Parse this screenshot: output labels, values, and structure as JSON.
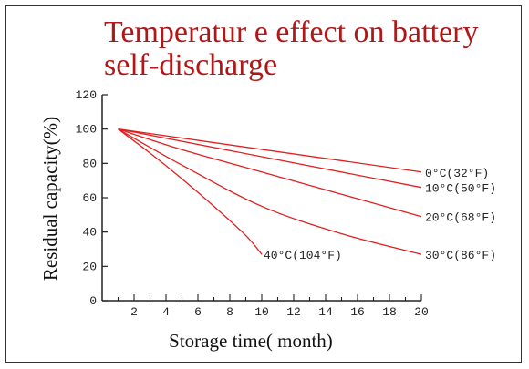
{
  "title": {
    "line1": "Temperatur e effect on battery",
    "line2": "self-discharge"
  },
  "colors": {
    "title": "#b01818",
    "series": "#e02020",
    "axis": "#222222"
  },
  "chart_data": {
    "type": "line",
    "xlabel": "Storage time( month)",
    "ylabel": "Residual capacity(%)",
    "xlim": [
      0,
      20
    ],
    "ylim": [
      0,
      120
    ],
    "xticks": [
      2,
      4,
      6,
      8,
      10,
      12,
      14,
      16,
      18,
      20
    ],
    "yticks": [
      0,
      20,
      40,
      60,
      80,
      100,
      120
    ],
    "grid": false,
    "legend": "none",
    "series": [
      {
        "name": "0°C(32°F)",
        "x": [
          1,
          20
        ],
        "y": [
          100,
          75
        ]
      },
      {
        "name": "10°C(50°F)",
        "x": [
          1,
          20
        ],
        "y": [
          100,
          66
        ]
      },
      {
        "name": "20°C(68°F)",
        "x": [
          1,
          5,
          10,
          15,
          20
        ],
        "y": [
          100,
          88,
          75,
          62,
          49
        ]
      },
      {
        "name": "30°C(86°F)",
        "x": [
          1,
          5,
          10,
          15,
          20
        ],
        "y": [
          100,
          79,
          55,
          39,
          27
        ]
      },
      {
        "name": "40°C(104°F)",
        "x": [
          1,
          3,
          5,
          7,
          9,
          10
        ],
        "y": [
          100,
          86,
          71,
          55,
          38,
          27
        ]
      }
    ]
  }
}
